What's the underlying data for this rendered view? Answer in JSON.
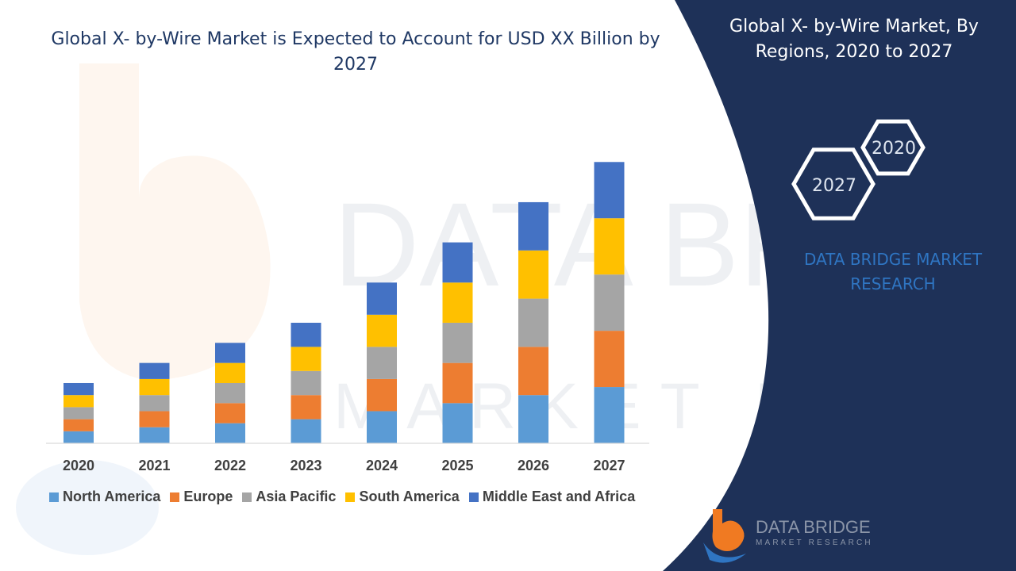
{
  "panel": {
    "title": "Global X- by-Wire Market, By Regions, 2020 to 2027",
    "hex_labels": [
      "2020",
      "2027"
    ],
    "brand_text": "DATA BRIDGE MARKET RESEARCH",
    "logo_text": {
      "line1": "DATA BRIDGE",
      "line2": "MARKET RESEARCH"
    }
  },
  "watermark": {
    "line1": "DATA BRIDGE",
    "line2": "MARKET RESEARCH"
  },
  "colors": {
    "panel_bg": "#1e3158",
    "title_text": "#1f3864",
    "brand_blue": "#2f75c2",
    "logo_orange": "#f07a22"
  },
  "chart_data": {
    "type": "bar",
    "stacked": true,
    "title": "Global X- by-Wire Market is Expected to Account for USD XX Billion by 2027",
    "categories": [
      "2020",
      "2021",
      "2022",
      "2023",
      "2024",
      "2025",
      "2026",
      "2027"
    ],
    "series": [
      {
        "name": "North America",
        "color": "#5b9bd5",
        "values": [
          1.5,
          2.0,
          2.5,
          3.0,
          4.0,
          5.0,
          6.0,
          7.0
        ]
      },
      {
        "name": "Europe",
        "color": "#ed7d31",
        "values": [
          1.5,
          2.0,
          2.5,
          3.0,
          4.0,
          5.0,
          6.0,
          7.0
        ]
      },
      {
        "name": "Asia Pacific",
        "color": "#a5a5a5",
        "values": [
          1.5,
          2.0,
          2.5,
          3.0,
          4.0,
          5.0,
          6.0,
          7.0
        ]
      },
      {
        "name": "South America",
        "color": "#ffc000",
        "values": [
          1.5,
          2.0,
          2.5,
          3.0,
          4.0,
          5.0,
          6.0,
          7.0
        ]
      },
      {
        "name": "Middle East and Africa",
        "color": "#4472c4",
        "values": [
          1.5,
          2.0,
          2.5,
          3.0,
          4.0,
          5.0,
          6.0,
          7.0
        ]
      }
    ],
    "ylim": [
      0,
      37
    ],
    "grid": false,
    "legend_position": "bottom",
    "xlabel": "",
    "ylabel": ""
  }
}
